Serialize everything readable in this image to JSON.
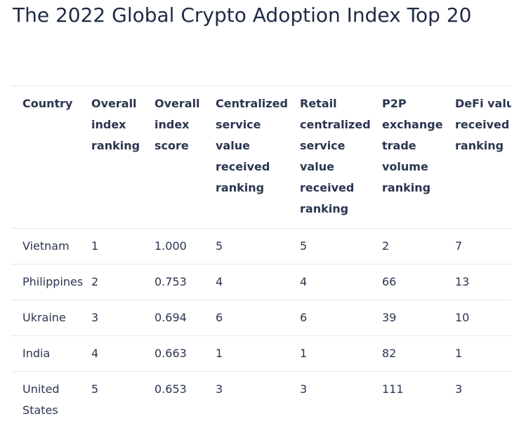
{
  "page": {
    "title": "The 2022 Global Crypto Adoption Index Top 20"
  },
  "table": {
    "headers": [
      "Country",
      "Overall index ranking",
      "Overall index score",
      "Centralized service value received ranking",
      "Retail centralized service value received ranking",
      "P2P exchange trade volume ranking",
      "DeFi value received ranking"
    ],
    "rows": [
      [
        "Vietnam",
        "1",
        "1.000",
        "5",
        "5",
        "2",
        "7"
      ],
      [
        "Philippines",
        "2",
        "0.753",
        "4",
        "4",
        "66",
        "13"
      ],
      [
        "Ukraine",
        "3",
        "0.694",
        "6",
        "6",
        "39",
        "10"
      ],
      [
        "India",
        "4",
        "0.663",
        "1",
        "1",
        "82",
        "1"
      ],
      [
        "United States",
        "5",
        "0.653",
        "3",
        "3",
        "111",
        "3"
      ]
    ]
  }
}
